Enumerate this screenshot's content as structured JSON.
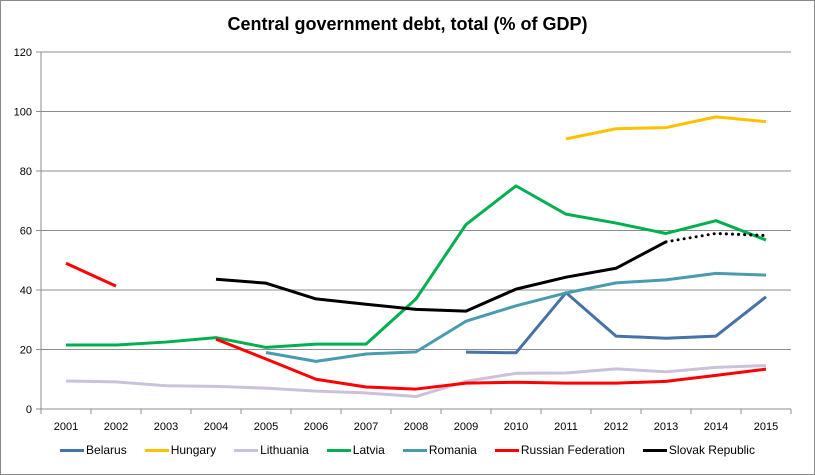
{
  "chart_data": {
    "type": "line",
    "title": "Central government debt, total (% of GDP)",
    "xlabel": "",
    "ylabel": "",
    "ylim": [
      0,
      120
    ],
    "yticks": [
      0,
      20,
      40,
      60,
      80,
      100,
      120
    ],
    "grid": "horizontal",
    "legend_position": "bottom",
    "x": [
      "2001",
      "2002",
      "2003",
      "2004",
      "2005",
      "2006",
      "2007",
      "2008",
      "2009",
      "2010",
      "2011",
      "2012",
      "2013",
      "2014",
      "2015"
    ],
    "series": [
      {
        "name": "Belarus",
        "color": "#4672a8",
        "values": [
          null,
          null,
          null,
          null,
          null,
          null,
          null,
          null,
          19.1,
          18.9,
          39.1,
          24.5,
          23.8,
          24.5,
          37.7
        ]
      },
      {
        "name": "Hungary",
        "color": "#ffc000",
        "values": [
          null,
          null,
          null,
          null,
          null,
          null,
          null,
          null,
          null,
          null,
          90.8,
          94.2,
          94.6,
          98.2,
          96.6
        ]
      },
      {
        "name": "Lithuania",
        "color": "#ccc1da",
        "values": [
          9.4,
          9.1,
          7.8,
          7.6,
          7.0,
          6.0,
          5.4,
          4.2,
          9.3,
          12.0,
          12.1,
          13.5,
          12.5,
          14.0,
          14.6
        ]
      },
      {
        "name": "Latvia",
        "color": "#00b050",
        "values": [
          21.5,
          21.5,
          22.5,
          24.0,
          20.7,
          21.8,
          21.8,
          37.0,
          62.0,
          75.0,
          65.5,
          62.5,
          59.0,
          63.3,
          56.8
        ]
      },
      {
        "name": "Romania",
        "color": "#4a9bb0",
        "values": [
          null,
          null,
          null,
          null,
          19.0,
          16.0,
          18.5,
          19.2,
          29.5,
          34.7,
          39.0,
          42.4,
          43.4,
          45.6,
          45.0
        ]
      },
      {
        "name": "Russian Federation",
        "color": "#ff0000",
        "values": [
          49.0,
          41.3,
          null,
          23.5,
          16.8,
          10.0,
          7.4,
          6.7,
          8.7,
          9.0,
          8.7,
          8.7,
          9.3,
          11.3,
          13.4
        ]
      },
      {
        "name": "Slovak Republic",
        "color": "#000000",
        "values": [
          null,
          null,
          null,
          43.6,
          42.3,
          37.0,
          35.2,
          33.5,
          32.9,
          40.3,
          44.3,
          47.3,
          56.2,
          59.0,
          58.3
        ],
        "dotted_from": "2013"
      }
    ]
  }
}
